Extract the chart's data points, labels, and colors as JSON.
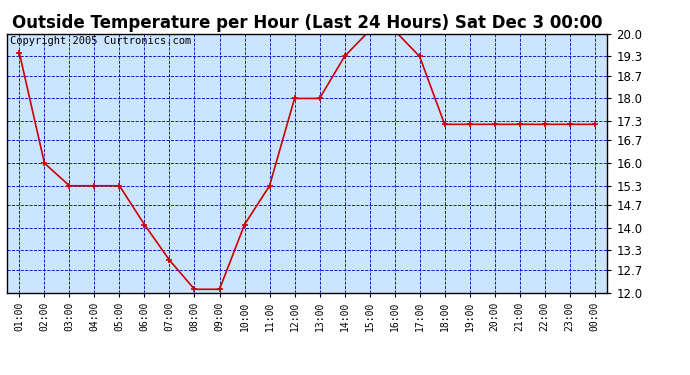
{
  "title": "Outside Temperature per Hour (Last 24 Hours) Sat Dec 3 00:00",
  "copyright": "Copyright 2005 Curtronics.com",
  "x_labels": [
    "01:00",
    "02:00",
    "03:00",
    "04:00",
    "05:00",
    "06:00",
    "07:00",
    "08:00",
    "09:00",
    "10:00",
    "11:00",
    "12:00",
    "13:00",
    "14:00",
    "15:00",
    "16:00",
    "17:00",
    "18:00",
    "19:00",
    "20:00",
    "21:00",
    "22:00",
    "23:00",
    "00:00"
  ],
  "y_values": [
    19.4,
    16.0,
    15.3,
    15.3,
    15.3,
    14.1,
    13.0,
    12.1,
    12.1,
    14.1,
    15.3,
    18.0,
    18.0,
    19.3,
    20.1,
    20.1,
    19.3,
    17.2,
    17.2,
    17.2,
    17.2,
    17.2,
    17.2,
    17.2
  ],
  "line_color": "#cc0000",
  "marker_color": "#cc0000",
  "fig_bg_color": "#ffffff",
  "plot_bg_color": "#cce5ff",
  "grid_color": "#0000bb",
  "border_color": "#000000",
  "ylim": [
    12.0,
    20.0
  ],
  "yticks": [
    12.0,
    12.7,
    13.3,
    14.0,
    14.7,
    15.3,
    16.0,
    16.7,
    17.3,
    18.0,
    18.7,
    19.3,
    20.0
  ],
  "title_fontsize": 12,
  "copyright_fontsize": 7.5
}
